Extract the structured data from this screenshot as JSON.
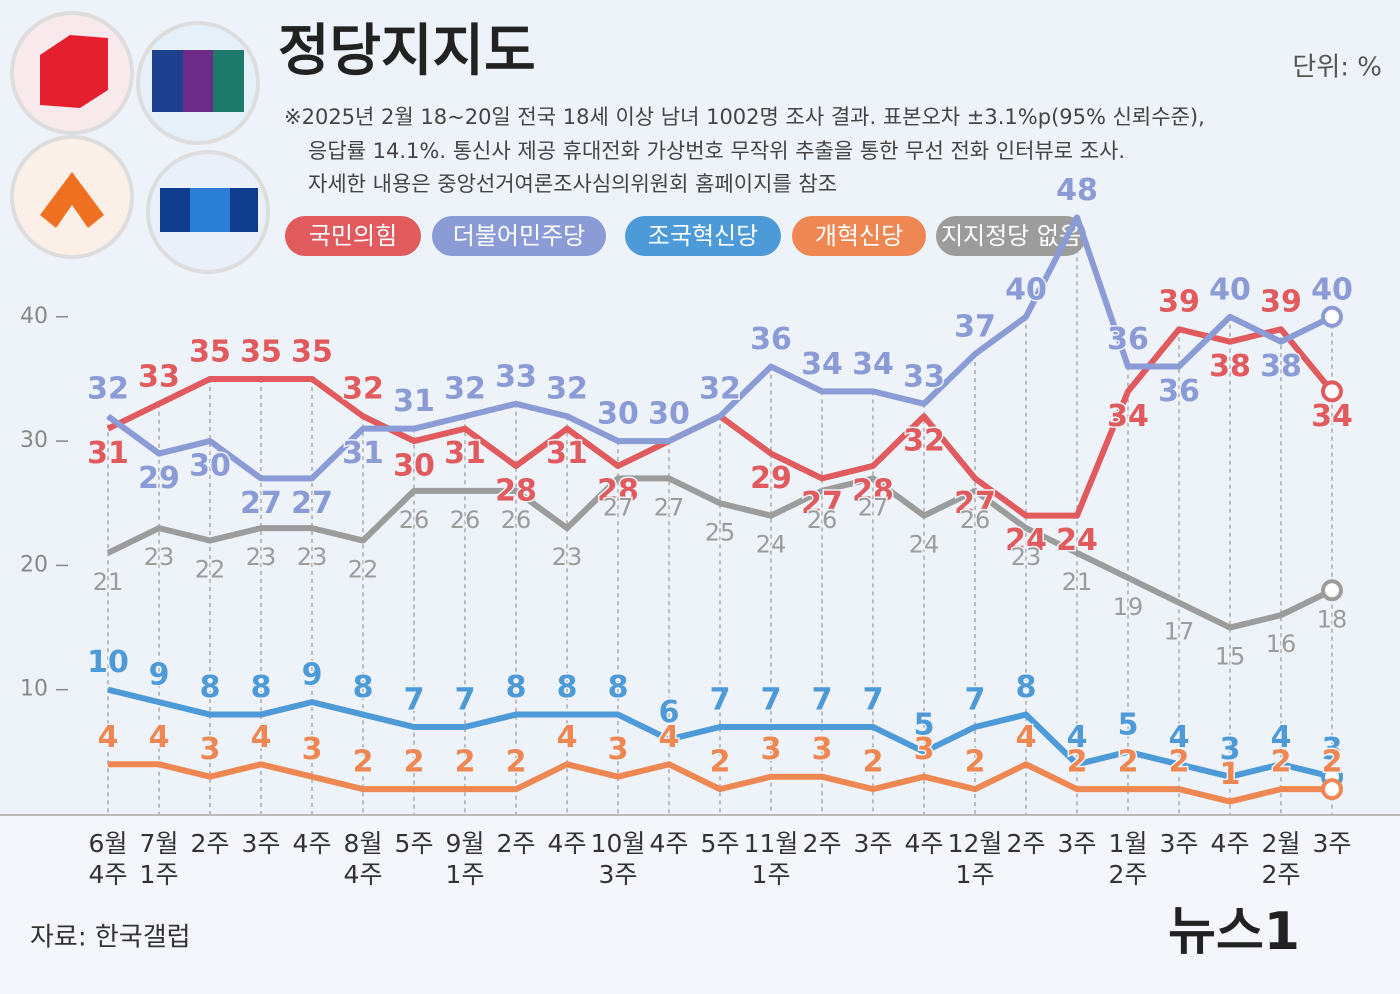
{
  "chart_data": {
    "type": "line",
    "title": "정당지지도",
    "unit": "단위: %",
    "notes": [
      "※2025년 2월 18~20일 전국 18세 이상 남녀 1002명 조사 결과. 표본오차 ±3.1%p(95% 신뢰수준),",
      "응답률 14.1%. 통신사 제공 휴대전화 가상번호 무작위 추출을 통한 무선 전화 인터뷰로 조사.",
      "자세한 내용은 중앙선거여론조사심의위원회 홈페이지를 참조"
    ],
    "source": "자료: 한국갤럽",
    "brand": "뉴스1",
    "categories": [
      "6월\n4주",
      "7월\n1주",
      "2주",
      "3주",
      "4주",
      "8월\n4주",
      "5주",
      "9월\n1주",
      "2주",
      "4주",
      "10월\n3주",
      "4주",
      "5주",
      "11월\n1주",
      "2주",
      "3주",
      "4주",
      "12월\n1주",
      "2주",
      "3주",
      "1월\n2주",
      "3주",
      "4주",
      "2월\n2주",
      "3주"
    ],
    "series": [
      {
        "name": "국민의힘",
        "color": "#e15b5e",
        "values": [
          31,
          33,
          35,
          35,
          35,
          32,
          30,
          31,
          28,
          31,
          28,
          30,
          32,
          29,
          27,
          28,
          32,
          27,
          24,
          24,
          34,
          39,
          38,
          39,
          34
        ]
      },
      {
        "name": "더불어민주당",
        "color": "#8a9bd6",
        "values": [
          32,
          29,
          30,
          27,
          27,
          31,
          31,
          32,
          33,
          32,
          30,
          30,
          32,
          36,
          34,
          34,
          33,
          37,
          40,
          48,
          36,
          36,
          40,
          38,
          40
        ]
      },
      {
        "name": "조국혁신당",
        "color": "#4c9ad8",
        "values": [
          10,
          9,
          8,
          8,
          9,
          8,
          7,
          7,
          8,
          8,
          8,
          6,
          7,
          7,
          7,
          7,
          5,
          7,
          8,
          4,
          5,
          4,
          3,
          4,
          3
        ]
      },
      {
        "name": "개혁신당",
        "color": "#ef8752",
        "values": [
          4,
          4,
          3,
          4,
          3,
          2,
          2,
          2,
          2,
          4,
          3,
          4,
          2,
          3,
          3,
          2,
          3,
          2,
          4,
          2,
          2,
          2,
          1,
          2,
          2
        ]
      },
      {
        "name": "지지정당 없음",
        "color": "#9c9c9c",
        "values": [
          21,
          23,
          22,
          23,
          23,
          22,
          26,
          26,
          26,
          23,
          27,
          27,
          25,
          24,
          26,
          27,
          24,
          26,
          23,
          21,
          19,
          17,
          15,
          16,
          18
        ]
      }
    ],
    "ylim": [
      0,
      50
    ],
    "yticks": [
      10,
      20,
      30,
      40
    ]
  }
}
